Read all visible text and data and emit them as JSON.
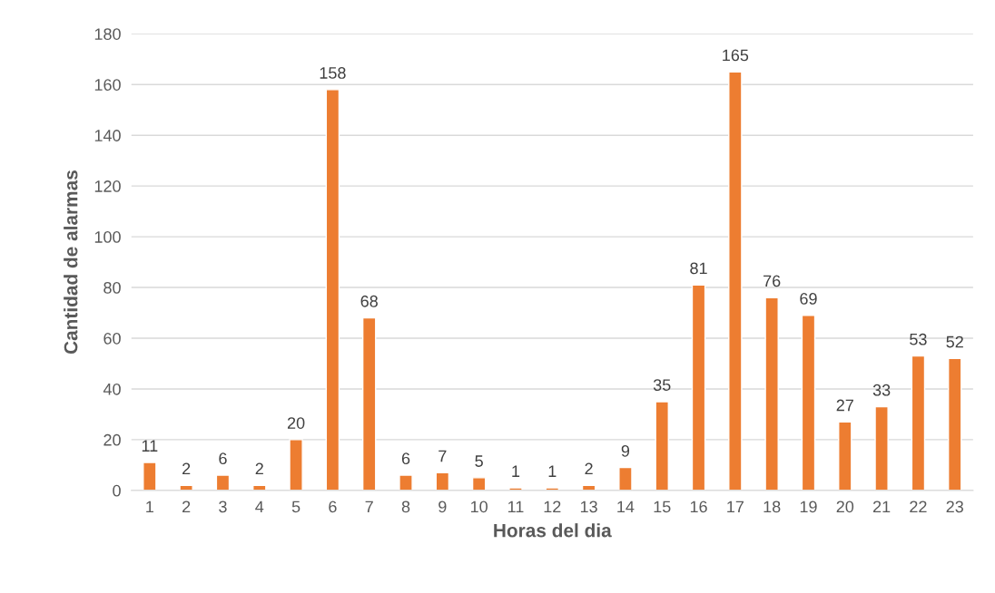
{
  "chart_data": {
    "type": "bar",
    "xlabel": "Horas del dia",
    "ylabel": "Cantidad de alarmas",
    "categories": [
      "1",
      "2",
      "3",
      "4",
      "5",
      "6",
      "7",
      "8",
      "9",
      "10",
      "11",
      "12",
      "13",
      "14",
      "15",
      "16",
      "17",
      "18",
      "19",
      "20",
      "21",
      "22",
      "23"
    ],
    "values": [
      11,
      2,
      6,
      2,
      20,
      158,
      68,
      6,
      7,
      5,
      1,
      1,
      2,
      9,
      35,
      81,
      165,
      76,
      69,
      27,
      33,
      53,
      52
    ],
    "color": "#ed7d31",
    "ylim": [
      0,
      180
    ],
    "yticks": [
      0,
      20,
      40,
      60,
      80,
      100,
      120,
      140,
      160,
      180
    ],
    "grid": "y",
    "data_labels": true,
    "legend": false
  }
}
